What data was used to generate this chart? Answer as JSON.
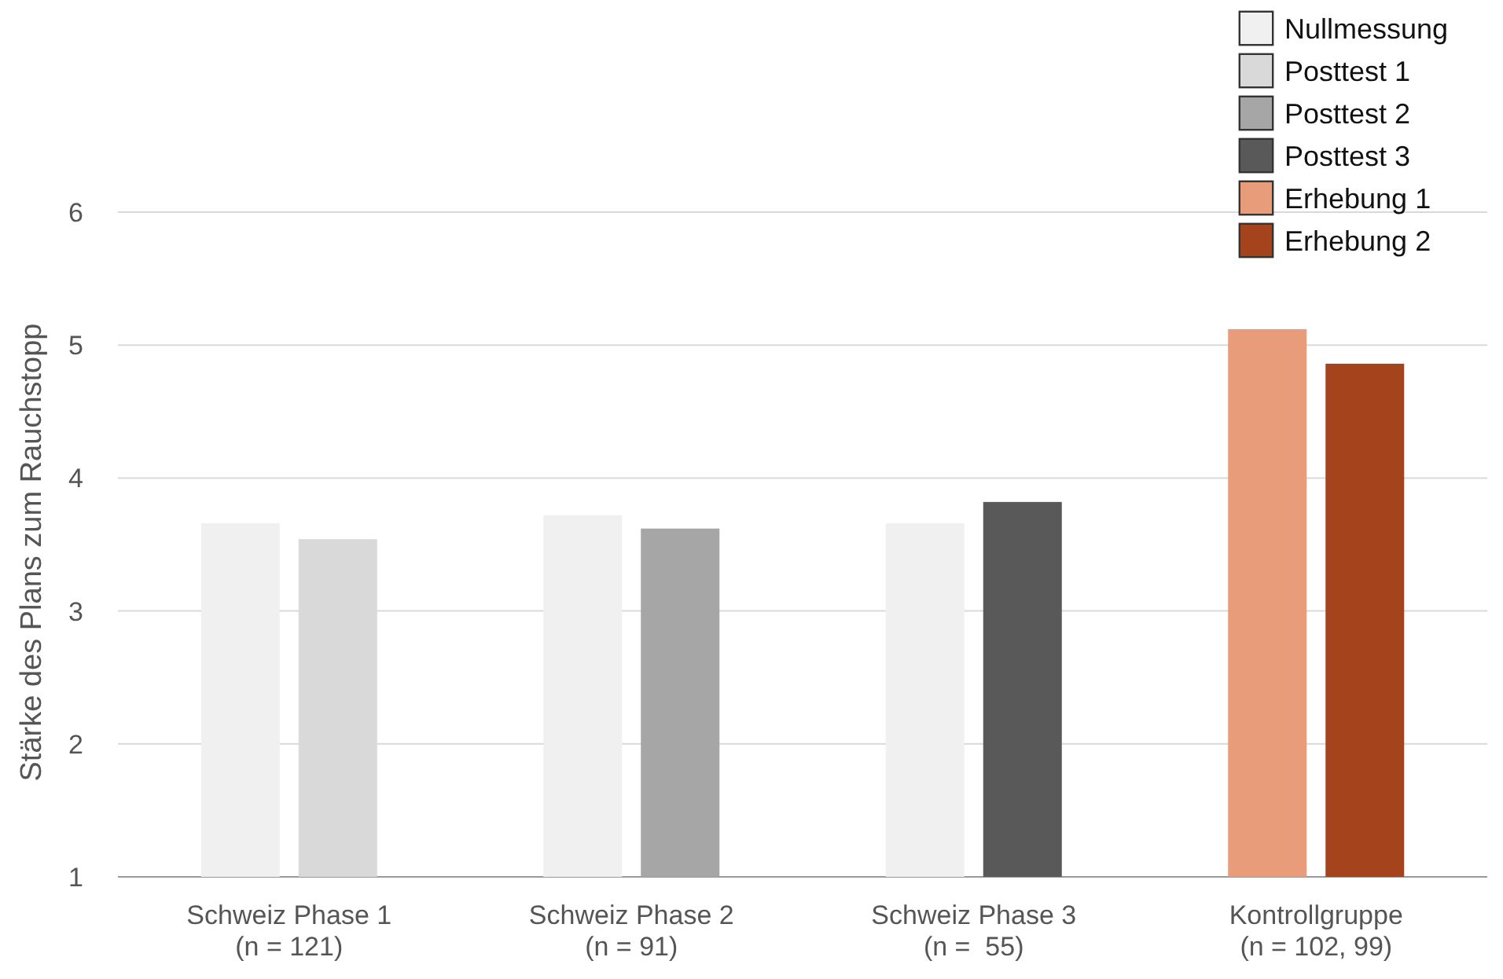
{
  "chart_data": {
    "type": "bar",
    "ylabel": "Stärke des Plans zum Rauchstopp",
    "categories": [
      "Schweiz Phase 1\n(n = 121)",
      "Schweiz Phase 2\n(n = 91)",
      "Schweiz Phase 3\n(n =  55)",
      "Kontrollgruppe\n(n = 102, 99)"
    ],
    "series": [
      {
        "name": "Nullmessung",
        "color": "#f0f0f0",
        "values": [
          3.66,
          3.72,
          3.66,
          null
        ]
      },
      {
        "name": "Posttest 1",
        "color": "#d9d9d9",
        "values": [
          3.54,
          null,
          null,
          null
        ]
      },
      {
        "name": "Posttest 2",
        "color": "#a6a6a6",
        "values": [
          null,
          3.62,
          null,
          null
        ]
      },
      {
        "name": "Posttest 3",
        "color": "#595959",
        "values": [
          null,
          null,
          3.82,
          null
        ]
      },
      {
        "name": "Erhebung 1",
        "color": "#e99c7a",
        "values": [
          null,
          null,
          null,
          5.12
        ]
      },
      {
        "name": "Erhebung 2",
        "color": "#a5431c",
        "values": [
          null,
          null,
          null,
          4.86
        ]
      }
    ],
    "ylim": [
      1,
      6
    ],
    "yticks": [
      1,
      2,
      3,
      4,
      5,
      6
    ],
    "grid": "y",
    "legend": "top right"
  }
}
